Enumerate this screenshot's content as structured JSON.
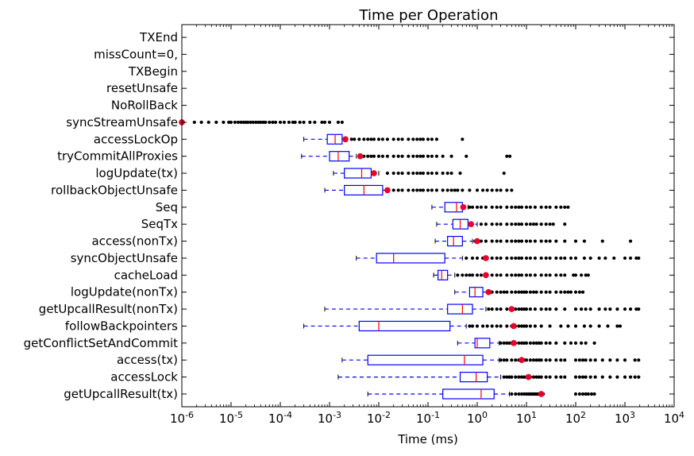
{
  "chart_data": {
    "type": "boxplot",
    "orientation": "horizontal",
    "title": "Time per Operation",
    "xlabel": "Time (ms)",
    "ylabel": "",
    "x_scale": "log",
    "xlim": [
      1e-06,
      10000
    ],
    "x_ticks": [
      {
        "value": 1e-06,
        "base": "10",
        "exp": "-6"
      },
      {
        "value": 1e-05,
        "base": "10",
        "exp": "-5"
      },
      {
        "value": 0.0001,
        "base": "10",
        "exp": "-4"
      },
      {
        "value": 0.001,
        "base": "10",
        "exp": "-3"
      },
      {
        "value": 0.01,
        "base": "10",
        "exp": "-2"
      },
      {
        "value": 0.1,
        "base": "10",
        "exp": "-1"
      },
      {
        "value": 1,
        "base": "10",
        "exp": "0"
      },
      {
        "value": 10,
        "base": "10",
        "exp": "1"
      },
      {
        "value": 100,
        "base": "10",
        "exp": "2"
      },
      {
        "value": 1000,
        "base": "10",
        "exp": "3"
      },
      {
        "value": 10000,
        "base": "10",
        "exp": "4"
      }
    ],
    "grid": false,
    "colors": {
      "box": "#0000ff",
      "median": "#ff0000",
      "mean": "#e8002a",
      "outlier": "#000000"
    },
    "categories": [
      {
        "name": "getUpcallResult(tx)",
        "whisker_low": 0.006,
        "q1": 0.2,
        "median": 1.2,
        "q3": 2.2,
        "whisker_high": 4.5,
        "mean": 20,
        "outliers": [
          5,
          6,
          7,
          8,
          9,
          10,
          11,
          12,
          13,
          14,
          15,
          16,
          17,
          18,
          20,
          22,
          100,
          120,
          140,
          160,
          180,
          210,
          240
        ]
      },
      {
        "name": "accessLock",
        "whisker_low": 0.0015,
        "q1": 0.45,
        "median": 0.95,
        "q3": 1.6,
        "whisker_high": 3,
        "mean": 11,
        "outliers": [
          3.5,
          4,
          4.5,
          5,
          6,
          7,
          8,
          9,
          10,
          12,
          14,
          16,
          18,
          20,
          25,
          30,
          40,
          50,
          60,
          100,
          120,
          140,
          160,
          200,
          250,
          350,
          500,
          700,
          1000,
          1300,
          1600,
          1900
        ]
      },
      {
        "name": "access(tx)",
        "whisker_low": 0.0018,
        "q1": 0.006,
        "median": 0.55,
        "q3": 1.3,
        "whisker_high": 2.8,
        "mean": 8,
        "outliers": [
          3,
          3.5,
          4,
          5,
          6,
          7,
          8,
          9,
          10,
          12,
          14,
          16,
          18,
          20,
          25,
          30,
          40,
          50,
          60,
          100,
          120,
          140,
          160,
          200,
          250,
          350,
          500,
          700,
          1000,
          1600,
          1900
        ]
      },
      {
        "name": "getConflictSetAndCommit",
        "whisker_low": 0.4,
        "q1": 0.9,
        "median": 1.0,
        "q3": 1.8,
        "whisker_high": 2.8,
        "mean": 5.5,
        "outliers": [
          3,
          3.5,
          4,
          4.5,
          5,
          6,
          7,
          8,
          9,
          10,
          12,
          14,
          16,
          18,
          20,
          25,
          30,
          40,
          60,
          80,
          100,
          130,
          160,
          240
        ]
      },
      {
        "name": "followBackpointers",
        "whisker_low": 0.0003,
        "q1": 0.004,
        "median": 0.01,
        "q3": 0.28,
        "whisker_high": 0.6,
        "mean": 5.5,
        "outliers": [
          0.7,
          0.8,
          1,
          1.3,
          1.6,
          2,
          2.5,
          3,
          4,
          5,
          6,
          7,
          8,
          9,
          10,
          12,
          15,
          20,
          30,
          50,
          70,
          100,
          150,
          200,
          300,
          450,
          700,
          800
        ]
      },
      {
        "name": "getUpcallResult(nonTx)",
        "whisker_low": 0.0008,
        "q1": 0.25,
        "median": 0.5,
        "q3": 0.8,
        "whisker_high": 1.5,
        "mean": 5,
        "outliers": [
          1.7,
          2,
          2.5,
          3,
          4,
          5,
          6,
          7,
          8,
          9,
          10,
          12,
          15,
          20,
          25,
          30,
          40,
          60,
          100,
          130,
          160,
          200,
          300,
          400,
          500,
          700,
          1000,
          1300,
          1700,
          1900
        ]
      },
      {
        "name": "logUpdate(nonTx)",
        "whisker_low": 0.35,
        "q1": 0.7,
        "median": 0.9,
        "q3": 1.3,
        "whisker_high": 1.8,
        "mean": 1.7,
        "outliers": [
          2,
          2.5,
          3,
          3.5,
          4,
          5,
          6,
          7,
          8,
          9,
          10,
          12,
          14,
          16,
          20,
          25,
          30,
          40,
          50,
          60,
          70,
          80,
          100,
          120,
          140
        ]
      },
      {
        "name": "cacheLoad",
        "whisker_low": 0.13,
        "q1": 0.16,
        "median": 0.19,
        "q3": 0.25,
        "whisker_high": 0.35,
        "mean": 1.5,
        "outliers": [
          0.4,
          0.5,
          0.6,
          0.7,
          0.8,
          1,
          1.2,
          1.5,
          2,
          2.5,
          3,
          4,
          5,
          6,
          7,
          8,
          10,
          12,
          15,
          20,
          25,
          30,
          40,
          50,
          60,
          90,
          100,
          130,
          160,
          180
        ]
      },
      {
        "name": "syncObjectUnsafe",
        "whisker_low": 0.0035,
        "q1": 0.009,
        "median": 0.02,
        "q3": 0.22,
        "whisker_high": 0.5,
        "mean": 1.5,
        "outliers": [
          0.6,
          0.8,
          1,
          1.3,
          1.6,
          2,
          2.5,
          3,
          4,
          5,
          6,
          7,
          8,
          10,
          12,
          15,
          20,
          25,
          30,
          40,
          50,
          60,
          80,
          100,
          150,
          200,
          300,
          400,
          600,
          1000,
          1300,
          1700,
          1900
        ]
      },
      {
        "name": "access(nonTx)",
        "whisker_low": 0.14,
        "q1": 0.25,
        "median": 0.33,
        "q3": 0.5,
        "whisker_high": 0.8,
        "mean": 1.0,
        "outliers": [
          0.9,
          1,
          1.2,
          1.5,
          2,
          2.5,
          3,
          4,
          5,
          6,
          7,
          8,
          10,
          12,
          15,
          20,
          25,
          30,
          40,
          60,
          100,
          150,
          350,
          1300
        ]
      },
      {
        "name": "SeqTx",
        "whisker_low": 0.15,
        "q1": 0.32,
        "median": 0.45,
        "q3": 0.65,
        "whisker_high": 1.0,
        "mean": 0.75,
        "outliers": [
          1.2,
          1.5,
          2,
          2.5,
          3,
          4,
          5,
          6,
          7,
          8,
          10,
          12,
          14,
          16,
          20,
          25,
          30,
          35,
          60
        ]
      },
      {
        "name": "Seq",
        "whisker_low": 0.12,
        "q1": 0.22,
        "median": 0.38,
        "q3": 0.5,
        "whisker_high": 0.65,
        "mean": 0.52,
        "outliers": [
          0.7,
          0.8,
          1,
          1.2,
          1.5,
          2,
          2.5,
          3,
          4,
          5,
          6,
          7,
          8,
          10,
          12,
          15,
          20,
          25,
          30,
          40,
          50,
          60,
          70
        ]
      },
      {
        "name": "rollbackObjectUnsafe",
        "whisker_low": 0.0008,
        "q1": 0.002,
        "median": 0.005,
        "q3": 0.012,
        "whisker_high": 0.016,
        "mean": 0.015,
        "outliers": [
          0.02,
          0.025,
          0.03,
          0.04,
          0.05,
          0.06,
          0.07,
          0.08,
          0.1,
          0.12,
          0.15,
          0.2,
          0.25,
          0.3,
          0.35,
          0.4,
          0.5,
          0.7,
          1,
          1.3,
          1.6,
          2,
          2.5,
          3,
          4,
          5
        ]
      },
      {
        "name": "logUpdate(tx)",
        "whisker_low": 0.0012,
        "q1": 0.002,
        "median": 0.0045,
        "q3": 0.007,
        "whisker_high": 0.01,
        "mean": 0.008,
        "outliers": [
          0.015,
          0.02,
          0.025,
          0.03,
          0.04,
          0.05,
          0.06,
          0.07,
          0.08,
          0.1,
          0.12,
          0.15,
          0.2,
          0.25,
          0.3,
          0.45,
          3.5
        ]
      },
      {
        "name": "tryCommitAllProxies",
        "whisker_low": 0.00027,
        "q1": 0.001,
        "median": 0.0015,
        "q3": 0.0025,
        "whisker_high": 0.0035,
        "mean": 0.0042,
        "outliers": [
          0.0045,
          0.005,
          0.006,
          0.007,
          0.008,
          0.01,
          0.012,
          0.015,
          0.02,
          0.025,
          0.03,
          0.04,
          0.05,
          0.06,
          0.07,
          0.08,
          0.1,
          0.12,
          0.15,
          0.2,
          0.3,
          0.6,
          4,
          4.6
        ]
      },
      {
        "name": "accessLockOp",
        "whisker_low": 0.0003,
        "q1": 0.0009,
        "median": 0.0013,
        "q3": 0.0018,
        "whisker_high": 0.0023,
        "mean": 0.0021,
        "outliers": [
          0.0028,
          0.0032,
          0.004,
          0.005,
          0.006,
          0.007,
          0.008,
          0.01,
          0.012,
          0.015,
          0.02,
          0.025,
          0.03,
          0.04,
          0.05,
          0.06,
          0.07,
          0.08,
          0.1,
          0.12,
          0.15,
          0.5
        ]
      },
      {
        "name": "syncStreamUnsafe",
        "whisker_low": null,
        "q1": null,
        "median": null,
        "q3": null,
        "whisker_high": null,
        "mean": 1e-06,
        "outliers": [
          1.8e-06,
          2.5e-06,
          3.5e-06,
          5e-06,
          7e-06,
          9e-06,
          1e-05,
          1.2e-05,
          1.4e-05,
          1.6e-05,
          1.8e-05,
          2e-05,
          2.2e-05,
          2.5e-05,
          2.8e-05,
          3.2e-05,
          3.6e-05,
          4e-05,
          4.5e-05,
          5e-05,
          6e-05,
          7e-05,
          8e-05,
          0.0001,
          0.00012,
          0.00015,
          0.00018,
          0.0002,
          0.00025,
          0.0003,
          0.0004,
          0.0005,
          0.0007,
          0.0008,
          0.001,
          0.0015,
          0.0018
        ]
      },
      {
        "name": "NoRollBack",
        "whisker_low": null,
        "q1": null,
        "median": null,
        "q3": null,
        "whisker_high": null,
        "mean": null,
        "outliers": []
      },
      {
        "name": "resetUnsafe",
        "whisker_low": null,
        "q1": null,
        "median": null,
        "q3": null,
        "whisker_high": null,
        "mean": null,
        "outliers": []
      },
      {
        "name": "TXBegin",
        "whisker_low": null,
        "q1": null,
        "median": null,
        "q3": null,
        "whisker_high": null,
        "mean": null,
        "outliers": []
      },
      {
        "name": "missCount=0,",
        "whisker_low": null,
        "q1": null,
        "median": null,
        "q3": null,
        "whisker_high": null,
        "mean": null,
        "outliers": []
      },
      {
        "name": "TXEnd",
        "whisker_low": null,
        "q1": null,
        "median": null,
        "q3": null,
        "whisker_high": null,
        "mean": null,
        "outliers": []
      }
    ]
  }
}
